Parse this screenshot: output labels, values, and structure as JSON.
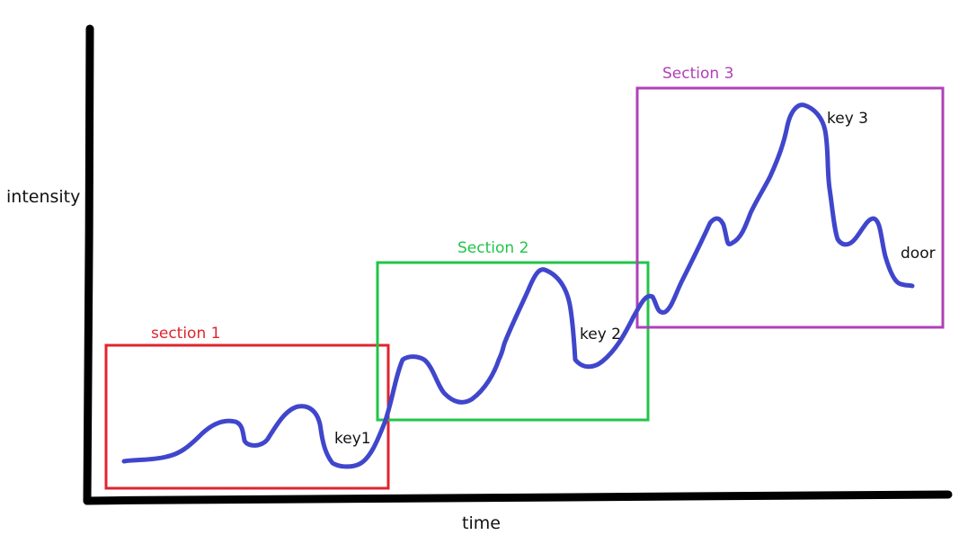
{
  "axes": {
    "y_label": "intensity",
    "x_label": "time"
  },
  "sections": [
    {
      "label": "section 1",
      "color": "#e0242e"
    },
    {
      "label": "Section 2",
      "color": "#22c44a"
    },
    {
      "label": "Section 3",
      "color": "#b040b8"
    }
  ],
  "annotations": {
    "key1": "key1",
    "key2": "key 2",
    "key3": "key 3",
    "door": "door"
  },
  "colors": {
    "axis": "#000000",
    "curve": "#4046cc"
  }
}
